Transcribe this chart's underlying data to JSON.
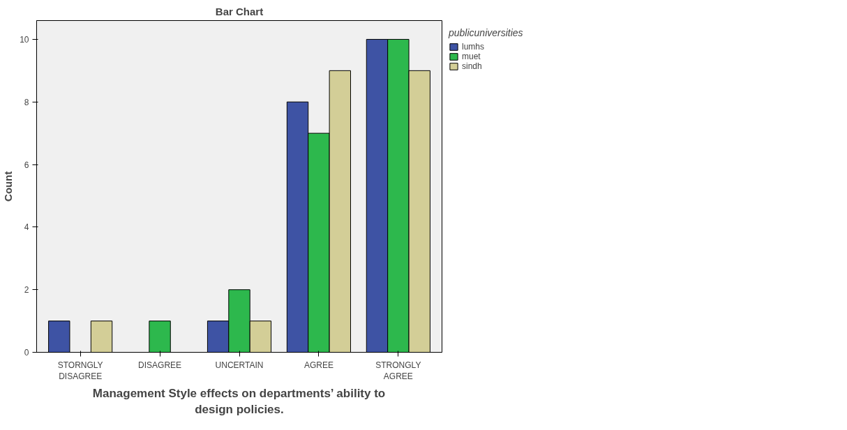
{
  "chart_data": {
    "type": "bar",
    "title": "Bar Chart",
    "xlabel": "Management Style effects on departments’ ability to\ndesign policies.",
    "ylabel": "Count",
    "legend_title": "publicuniversities",
    "categories": [
      "STORNGLY\nDISAGREE",
      "DISAGREE",
      "UNCERTAIN",
      "AGREE",
      "STRONGLY\nAGREE"
    ],
    "series": [
      {
        "name": "lumhs",
        "color": "#3e53a4",
        "values": [
          1,
          null,
          1,
          8,
          10
        ]
      },
      {
        "name": "muet",
        "color": "#2db84d",
        "values": [
          null,
          1,
          2,
          7,
          10
        ]
      },
      {
        "name": "sindh",
        "color": "#d3ce97",
        "values": [
          1,
          null,
          1,
          9,
          9
        ]
      }
    ],
    "ylim": [
      0,
      10.6
    ],
    "yticks": [
      0,
      2,
      4,
      6,
      8,
      10
    ],
    "grid": false,
    "legend": "top right"
  }
}
